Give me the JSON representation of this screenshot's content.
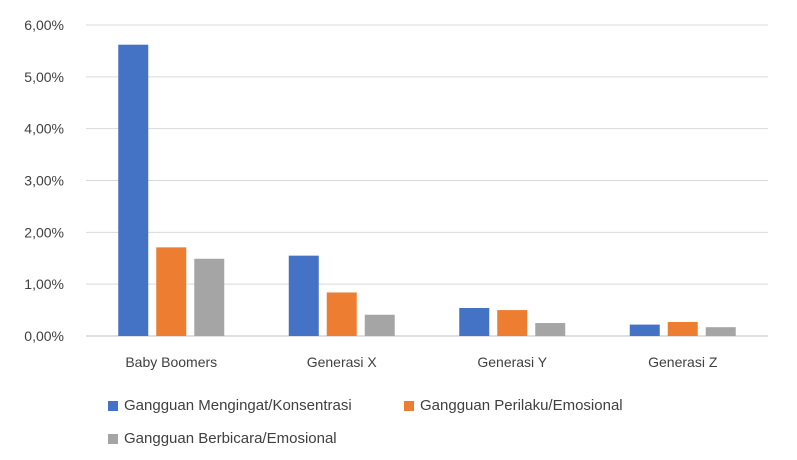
{
  "chart_data": {
    "type": "bar",
    "categories": [
      "Baby Boomers",
      "Generasi X",
      "Generasi Y",
      "Generasi Z"
    ],
    "series": [
      {
        "name": "Gangguan Mengingat/Konsentrasi",
        "color": "#4472C4",
        "values": [
          5.62,
          1.55,
          0.54,
          0.22
        ]
      },
      {
        "name": "Gangguan Perilaku/Emosional",
        "color": "#ED7D31",
        "values": [
          1.71,
          0.84,
          0.5,
          0.27
        ]
      },
      {
        "name": "Gangguan Berbicara/Emosional",
        "color": "#A5A5A5",
        "values": [
          1.49,
          0.41,
          0.25,
          0.17
        ]
      }
    ],
    "ylim": [
      0,
      6
    ],
    "yticks": [
      0,
      1,
      2,
      3,
      4,
      5,
      6
    ],
    "ytick_labels": [
      "0,00%",
      "1,00%",
      "2,00%",
      "3,00%",
      "4,00%",
      "5,00%",
      "6,00%"
    ],
    "grid": true,
    "legend_position": "bottom",
    "title": "",
    "xlabel": "",
    "ylabel": ""
  }
}
